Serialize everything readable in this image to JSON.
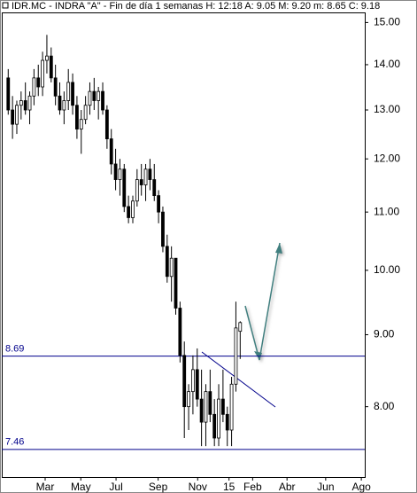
{
  "chart_data": {
    "type": "candlestick",
    "title": "IDR.MC - INDRA \"A\" - Fin de día 1 semanas H: 12:18 A: 9.05 M: 9.20 m: 8.65 C: 9.18",
    "log_scale": true,
    "up_color": "#ffffff",
    "down_color": "#000000",
    "level_color": "#00008b",
    "xlim": [
      -1.5,
      83
    ],
    "xticks": [
      {
        "value": 8.6,
        "label": "Mar"
      },
      {
        "value": 16.9,
        "label": "May"
      },
      {
        "value": 25.1,
        "label": "Jul"
      },
      {
        "value": 34.9,
        "label": "Sep"
      },
      {
        "value": 44.1,
        "label": "Nov"
      },
      {
        "value": 51.4,
        "label": "15"
      },
      {
        "value": 56.9,
        "label": "Feb"
      },
      {
        "value": 64.9,
        "label": "Abr"
      },
      {
        "value": 73.9,
        "label": "Jun"
      },
      {
        "value": 82.2,
        "label": "Ago"
      }
    ],
    "ylim": [
      7.13,
      15.25
    ],
    "yticks": [
      {
        "value": 8,
        "label": "8.00"
      },
      {
        "value": 9,
        "label": "9.00"
      },
      {
        "value": 10,
        "label": "10.00"
      },
      {
        "value": 11,
        "label": "11.00"
      },
      {
        "value": 12,
        "label": "12.00"
      },
      {
        "value": 13,
        "label": "13.00"
      },
      {
        "value": 14,
        "label": "14.00"
      },
      {
        "value": 15,
        "label": "15.00"
      }
    ],
    "levels": [
      8.69,
      7.46
    ],
    "open": [
      13.7,
      13.0,
      12.7,
      13.1,
      13.2,
      13.0,
      13.3,
      13.7,
      13.5,
      14.1,
      14.2,
      13.7,
      13.3,
      13.0,
      13.2,
      13.6,
      13.1,
      12.6,
      12.8,
      13.1,
      13.4,
      13.2,
      13.4,
      13.0,
      12.4,
      11.9,
      11.6,
      11.8,
      11.1,
      10.9,
      11.2,
      11.6,
      11.5,
      11.8,
      11.6,
      11.3,
      11.0,
      10.4,
      9.9,
      10.2,
      9.4,
      8.7,
      8.0,
      8.2,
      8.5,
      8.1,
      7.8,
      8.2,
      7.9,
      7.6,
      8.1,
      7.9,
      7.7,
      8.3,
      9.05
    ],
    "high": [
      13.9,
      13.3,
      13.2,
      13.4,
      13.6,
      13.4,
      13.9,
      14.0,
      14.3,
      14.7,
      14.4,
      14.0,
      13.6,
      13.4,
      13.9,
      13.8,
      13.3,
      13.0,
      13.3,
      13.6,
      13.7,
      13.5,
      13.6,
      13.1,
      12.6,
      12.2,
      12.0,
      11.9,
      11.3,
      11.3,
      11.8,
      11.9,
      11.9,
      12.0,
      11.9,
      11.4,
      11.1,
      10.6,
      10.4,
      10.2,
      9.5,
      8.9,
      8.3,
      8.7,
      8.8,
      8.5,
      8.3,
      8.5,
      8.1,
      8.3,
      8.5,
      8.0,
      8.4,
      9.5,
      9.2
    ],
    "low": [
      12.9,
      12.4,
      12.5,
      12.8,
      12.9,
      12.7,
      13.1,
      13.3,
      13.3,
      13.8,
      13.6,
      13.1,
      12.9,
      12.7,
      13.0,
      12.9,
      12.4,
      12.1,
      12.7,
      12.9,
      13.0,
      12.8,
      12.9,
      12.2,
      11.7,
      11.4,
      11.3,
      11.0,
      10.8,
      10.8,
      11.1,
      11.3,
      11.2,
      11.4,
      11.2,
      10.8,
      10.3,
      9.8,
      9.5,
      9.3,
      8.6,
      7.6,
      7.7,
      7.9,
      8.0,
      7.5,
      7.5,
      7.8,
      7.5,
      7.5,
      7.8,
      7.5,
      7.5,
      8.2,
      8.65
    ],
    "close": [
      13.0,
      12.7,
      13.1,
      13.2,
      13.0,
      13.3,
      13.7,
      13.5,
      14.1,
      14.2,
      13.7,
      13.3,
      13.0,
      13.2,
      13.6,
      13.1,
      12.6,
      12.8,
      13.1,
      13.4,
      13.2,
      13.4,
      13.0,
      12.4,
      11.9,
      11.6,
      11.8,
      11.1,
      10.9,
      11.2,
      11.6,
      11.5,
      11.8,
      11.6,
      11.3,
      11.0,
      10.4,
      9.9,
      10.2,
      9.4,
      8.7,
      8.0,
      8.2,
      8.5,
      8.1,
      7.8,
      8.2,
      7.9,
      7.6,
      8.1,
      7.9,
      7.7,
      8.3,
      9.1,
      9.18
    ]
  }
}
